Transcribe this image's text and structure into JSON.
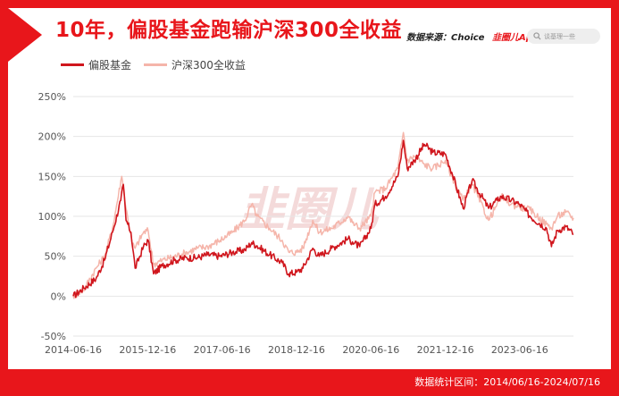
{
  "header": {
    "title": "10年，偏股基金跑输沪深300全收益",
    "source_label": "数据来源：Choice",
    "source_app": "韭圈儿App",
    "search_placeholder": "谈基理一些"
  },
  "watermark": "韭圈儿",
  "footer": {
    "range_text": "数据统计区间：2014/06/16-2024/07/16"
  },
  "colors": {
    "frame": "#e8161b",
    "series_fund": "#d0161d",
    "series_index": "#f5b5aa",
    "grid": "#e6e6e6"
  },
  "chart_data": {
    "type": "line",
    "title": "10年，偏股基金跑输沪深300全收益",
    "xlabel": "",
    "ylabel": "",
    "xlim": [
      "2014-06-16",
      "2024-07-16"
    ],
    "ylim": [
      -50,
      250
    ],
    "y_ticks": [
      -50,
      0,
      50,
      100,
      150,
      200,
      250
    ],
    "y_tick_labels": [
      "-50%",
      "0%",
      "50%",
      "100%",
      "150%",
      "200%",
      "250%"
    ],
    "x_ticks": [
      "2014-06-16",
      "2015-12-16",
      "2017-06-16",
      "2018-12-16",
      "2020-06-16",
      "2021-12-16",
      "2023-06-16"
    ],
    "grid": true,
    "legend_position": "top-left",
    "series": [
      {
        "name": "偏股基金",
        "points": [
          [
            "2014-06-16",
            0
          ],
          [
            "2014-09-01",
            10
          ],
          [
            "2014-12-01",
            22
          ],
          [
            "2015-02-01",
            45
          ],
          [
            "2015-04-01",
            80
          ],
          [
            "2015-06-01",
            120
          ],
          [
            "2015-06-20",
            140
          ],
          [
            "2015-07-10",
            95
          ],
          [
            "2015-08-15",
            80
          ],
          [
            "2015-09-15",
            35
          ],
          [
            "2015-11-15",
            62
          ],
          [
            "2015-12-20",
            70
          ],
          [
            "2016-01-28",
            28
          ],
          [
            "2016-04-01",
            38
          ],
          [
            "2016-07-01",
            45
          ],
          [
            "2016-10-01",
            48
          ],
          [
            "2016-12-15",
            48
          ],
          [
            "2017-03-01",
            52
          ],
          [
            "2017-06-01",
            50
          ],
          [
            "2017-09-01",
            55
          ],
          [
            "2017-12-01",
            58
          ],
          [
            "2018-01-20",
            67
          ],
          [
            "2018-03-01",
            63
          ],
          [
            "2018-06-01",
            52
          ],
          [
            "2018-09-01",
            42
          ],
          [
            "2018-10-20",
            28
          ],
          [
            "2018-12-16",
            30
          ],
          [
            "2019-02-01",
            35
          ],
          [
            "2019-04-15",
            60
          ],
          [
            "2019-06-01",
            50
          ],
          [
            "2019-09-01",
            60
          ],
          [
            "2019-12-31",
            72
          ],
          [
            "2020-02-01",
            68
          ],
          [
            "2020-03-25",
            62
          ],
          [
            "2020-06-16",
            85
          ],
          [
            "2020-07-15",
            115
          ],
          [
            "2020-10-01",
            125
          ],
          [
            "2020-12-31",
            150
          ],
          [
            "2021-02-10",
            195
          ],
          [
            "2021-03-10",
            160
          ],
          [
            "2021-05-01",
            170
          ],
          [
            "2021-07-15",
            190
          ],
          [
            "2021-09-15",
            180
          ],
          [
            "2021-12-16",
            178
          ],
          [
            "2022-02-01",
            155
          ],
          [
            "2022-04-26",
            110
          ],
          [
            "2022-07-01",
            145
          ],
          [
            "2022-10-31",
            110
          ],
          [
            "2022-12-31",
            120
          ],
          [
            "2023-02-01",
            125
          ],
          [
            "2023-04-15",
            120
          ],
          [
            "2023-06-16",
            115
          ],
          [
            "2023-09-01",
            100
          ],
          [
            "2023-12-31",
            85
          ],
          [
            "2024-02-05",
            62
          ],
          [
            "2024-03-20",
            82
          ],
          [
            "2024-05-20",
            87
          ],
          [
            "2024-07-16",
            78
          ]
        ]
      },
      {
        "name": "沪深300全收益",
        "points": [
          [
            "2014-06-16",
            0
          ],
          [
            "2014-09-01",
            8
          ],
          [
            "2014-12-01",
            35
          ],
          [
            "2015-02-01",
            50
          ],
          [
            "2015-04-01",
            85
          ],
          [
            "2015-06-08",
            150
          ],
          [
            "2015-07-10",
            110
          ],
          [
            "2015-08-26",
            65
          ],
          [
            "2015-09-15",
            60
          ],
          [
            "2015-11-15",
            80
          ],
          [
            "2015-12-20",
            82
          ],
          [
            "2016-01-28",
            40
          ],
          [
            "2016-04-01",
            45
          ],
          [
            "2016-07-01",
            50
          ],
          [
            "2016-10-01",
            55
          ],
          [
            "2016-12-15",
            60
          ],
          [
            "2017-03-01",
            62
          ],
          [
            "2017-06-01",
            70
          ],
          [
            "2017-09-01",
            80
          ],
          [
            "2017-12-01",
            95
          ],
          [
            "2018-01-20",
            115
          ],
          [
            "2018-03-01",
            100
          ],
          [
            "2018-06-01",
            85
          ],
          [
            "2018-09-01",
            70
          ],
          [
            "2018-10-20",
            55
          ],
          [
            "2018-12-16",
            55
          ],
          [
            "2019-02-01",
            60
          ],
          [
            "2019-04-15",
            95
          ],
          [
            "2019-06-01",
            80
          ],
          [
            "2019-09-01",
            85
          ],
          [
            "2019-12-31",
            100
          ],
          [
            "2020-02-01",
            92
          ],
          [
            "2020-03-25",
            85
          ],
          [
            "2020-06-16",
            100
          ],
          [
            "2020-07-15",
            130
          ],
          [
            "2020-10-01",
            135
          ],
          [
            "2020-12-31",
            160
          ],
          [
            "2021-02-10",
            205
          ],
          [
            "2021-03-10",
            170
          ],
          [
            "2021-05-01",
            175
          ],
          [
            "2021-07-15",
            165
          ],
          [
            "2021-09-15",
            160
          ],
          [
            "2021-12-16",
            170
          ],
          [
            "2022-02-01",
            150
          ],
          [
            "2022-04-26",
            120
          ],
          [
            "2022-07-01",
            140
          ],
          [
            "2022-10-31",
            95
          ],
          [
            "2022-12-31",
            115
          ],
          [
            "2023-02-01",
            125
          ],
          [
            "2023-04-15",
            115
          ],
          [
            "2023-06-16",
            112
          ],
          [
            "2023-09-01",
            108
          ],
          [
            "2023-12-31",
            90
          ],
          [
            "2024-02-05",
            85
          ],
          [
            "2024-03-20",
            100
          ],
          [
            "2024-05-20",
            105
          ],
          [
            "2024-07-16",
            98
          ]
        ]
      }
    ]
  }
}
